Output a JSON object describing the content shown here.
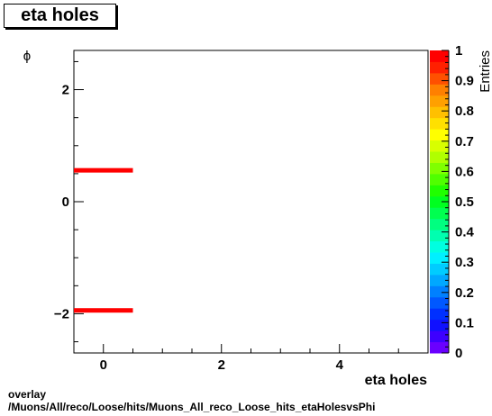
{
  "chart_data": {
    "type": "heatmap",
    "title": "eta holes",
    "xlabel": "eta holes",
    "ylabel": "ϕ",
    "zlabel": "Entries",
    "xlim": [
      -0.5,
      5.5
    ],
    "ylim": [
      -2.7,
      2.7
    ],
    "zlim": [
      0,
      1
    ],
    "x_ticks": [
      "0",
      "2",
      "4"
    ],
    "y_ticks": [
      "−2",
      "0",
      "2"
    ],
    "z_ticks": [
      "0",
      "0.1",
      "0.2",
      "0.3",
      "0.4",
      "0.5",
      "0.6",
      "0.7",
      "0.8",
      "0.9",
      "1"
    ],
    "cells": [
      {
        "x0": -0.5,
        "x1": 0.5,
        "y0": 0.52,
        "y1": 0.6,
        "value": 1
      },
      {
        "x0": -0.5,
        "x1": 0.5,
        "y0": -1.98,
        "y1": -1.9,
        "value": 1
      }
    ],
    "palette": [
      "#6a00ff",
      "#3d00ff",
      "#1010ff",
      "#0030ff",
      "#0058ff",
      "#0080ff",
      "#00a8ff",
      "#00ccff",
      "#00f0ff",
      "#00ffe0",
      "#00ffb0",
      "#00ff80",
      "#00ff50",
      "#00ff20",
      "#20ff00",
      "#50ff00",
      "#80ff00",
      "#b0ff00",
      "#d8ff00",
      "#ffff00",
      "#ffe000",
      "#ffc000",
      "#ffa000",
      "#ff8000",
      "#ff5000",
      "#ff2000",
      "#ff0000"
    ],
    "grid": false
  },
  "footer": {
    "line1": "overlay",
    "line2": "/Muons/All/reco/Loose/hits/Muons_All_reco_Loose_hits_etaHolesvsPhi"
  }
}
